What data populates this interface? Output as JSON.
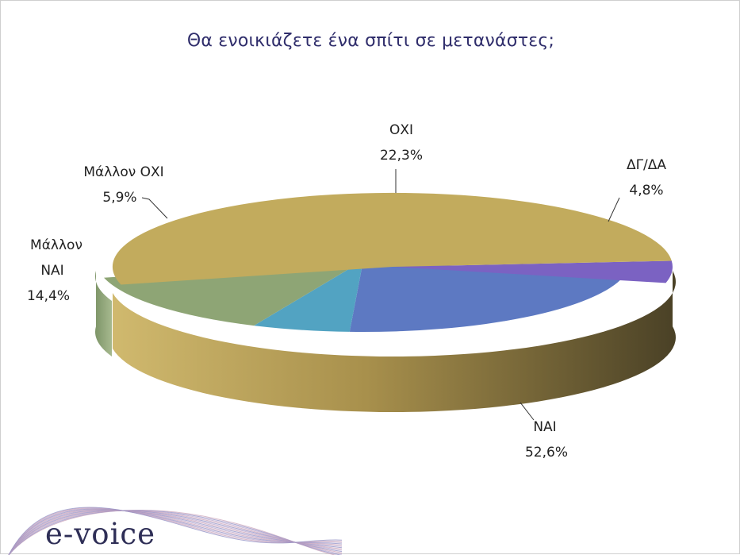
{
  "chart_data": {
    "type": "pie",
    "title": "Θα ενοικιάζετε ένα σπίτι σε μετανάστες;",
    "slices": [
      {
        "name": "ΝΑΙ",
        "value": 52.6,
        "label": "52,6%",
        "color": "#c2ab5d"
      },
      {
        "name": "ΔΓ/ΔΑ",
        "value": 4.8,
        "label": "4,8%",
        "color": "#7b62c2"
      },
      {
        "name": "ΟΧΙ",
        "value": 22.3,
        "label": "22,3%",
        "color": "#5d79c2"
      },
      {
        "name": "Μάλλον ΟΧΙ",
        "value": 5.9,
        "label": "5,9%",
        "color": "#52a3c2"
      },
      {
        "name": "Μάλλον ΝΑΙ",
        "value": 14.4,
        "label": "14,4%",
        "color": "#8ea575"
      }
    ],
    "legend": "none",
    "style": "3d-exploded-pie"
  },
  "branding": {
    "logo_text": "e-voice",
    "swoosh_colors": [
      "#c9a1b8",
      "#8f8ec4",
      "#b9a3c9"
    ]
  }
}
